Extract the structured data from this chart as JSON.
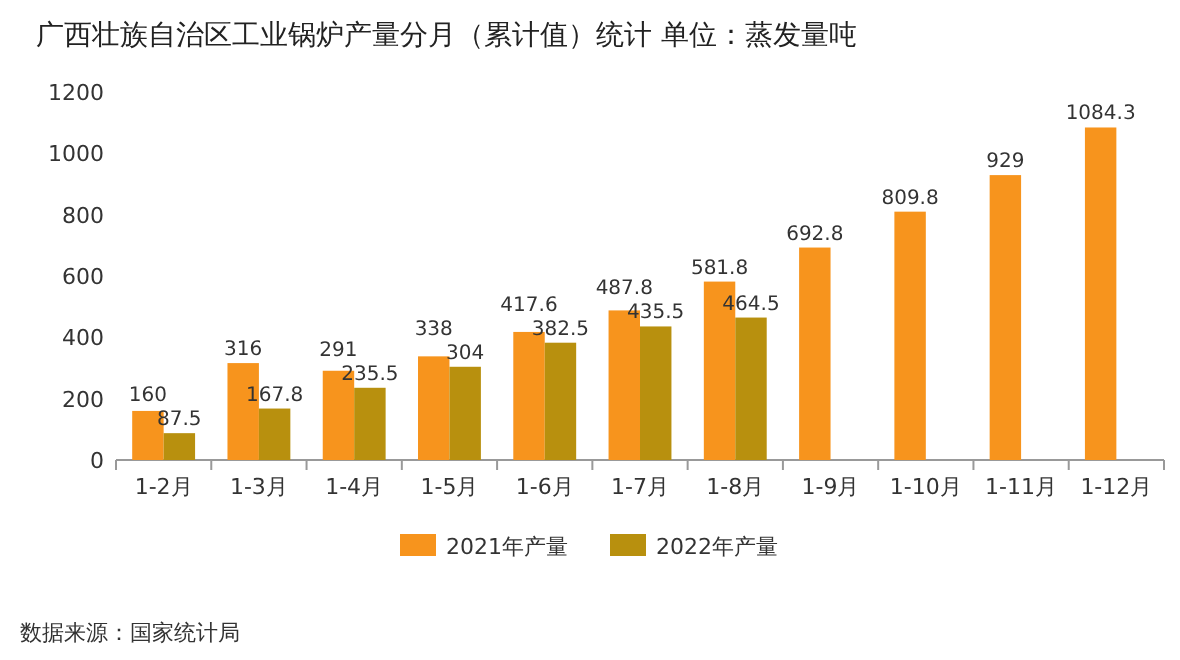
{
  "chart_data": {
    "type": "bar",
    "title": "广西壮族自治区工业锅炉产量分月（累计值）统计 单位：蒸发量吨",
    "categories": [
      "1-2月",
      "1-3月",
      "1-4月",
      "1-5月",
      "1-6月",
      "1-7月",
      "1-8月",
      "1-9月",
      "1-10月",
      "1-11月",
      "1-12月"
    ],
    "series": [
      {
        "name": "2021年产量",
        "color": "#f7941d",
        "values": [
          160,
          316,
          291,
          338,
          417.6,
          487.8,
          581.8,
          692.8,
          809.8,
          929,
          1084.3
        ]
      },
      {
        "name": "2022年产量",
        "color": "#b8900e",
        "values": [
          87.5,
          167.8,
          235.5,
          304,
          382.5,
          435.5,
          464.5,
          null,
          null,
          null,
          null
        ]
      }
    ],
    "ylim": [
      0,
      1200
    ],
    "yticks": [
      0,
      200,
      400,
      600,
      800,
      1000,
      1200
    ],
    "data_labels": true,
    "legend": "bottom",
    "grid": false,
    "annotations": [
      "数据来源：国家统计局"
    ]
  }
}
